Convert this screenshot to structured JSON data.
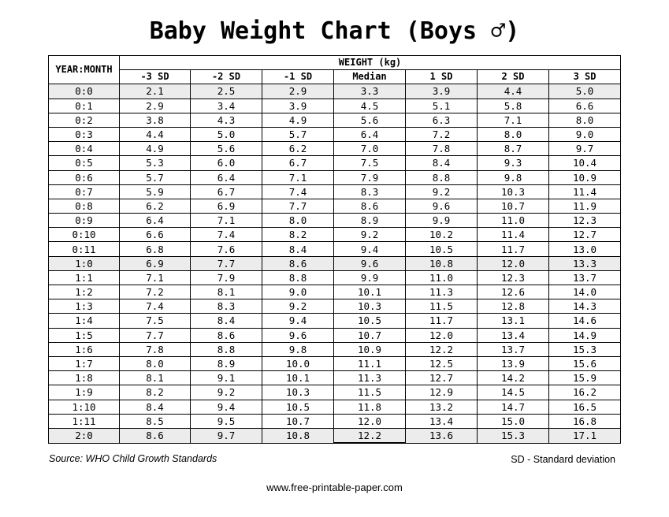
{
  "title": "Baby Weight Chart (Boys ♂)",
  "table": {
    "year_month_header": "YEAR:MONTH",
    "weight_header": "WEIGHT (kg)",
    "columns": [
      "-3 SD",
      "-2 SD",
      "-1 SD",
      "Median",
      "1 SD",
      "2 SD",
      "3 SD"
    ],
    "rows": [
      {
        "age": "0:0",
        "values": [
          "2.1",
          "2.5",
          "2.9",
          "3.3",
          "3.9",
          "4.4",
          "5.0"
        ]
      },
      {
        "age": "0:1",
        "values": [
          "2.9",
          "3.4",
          "3.9",
          "4.5",
          "5.1",
          "5.8",
          "6.6"
        ]
      },
      {
        "age": "0:2",
        "values": [
          "3.8",
          "4.3",
          "4.9",
          "5.6",
          "6.3",
          "7.1",
          "8.0"
        ]
      },
      {
        "age": "0:3",
        "values": [
          "4.4",
          "5.0",
          "5.7",
          "6.4",
          "7.2",
          "8.0",
          "9.0"
        ]
      },
      {
        "age": "0:4",
        "values": [
          "4.9",
          "5.6",
          "6.2",
          "7.0",
          "7.8",
          "8.7",
          "9.7"
        ]
      },
      {
        "age": "0:5",
        "values": [
          "5.3",
          "6.0",
          "6.7",
          "7.5",
          "8.4",
          "9.3",
          "10.4"
        ]
      },
      {
        "age": "0:6",
        "values": [
          "5.7",
          "6.4",
          "7.1",
          "7.9",
          "8.8",
          "9.8",
          "10.9"
        ]
      },
      {
        "age": "0:7",
        "values": [
          "5.9",
          "6.7",
          "7.4",
          "8.3",
          "9.2",
          "10.3",
          "11.4"
        ]
      },
      {
        "age": "0:8",
        "values": [
          "6.2",
          "6.9",
          "7.7",
          "8.6",
          "9.6",
          "10.7",
          "11.9"
        ]
      },
      {
        "age": "0:9",
        "values": [
          "6.4",
          "7.1",
          "8.0",
          "8.9",
          "9.9",
          "11.0",
          "12.3"
        ]
      },
      {
        "age": "0:10",
        "values": [
          "6.6",
          "7.4",
          "8.2",
          "9.2",
          "10.2",
          "11.4",
          "12.7"
        ]
      },
      {
        "age": "0:11",
        "values": [
          "6.8",
          "7.6",
          "8.4",
          "9.4",
          "10.5",
          "11.7",
          "13.0"
        ]
      },
      {
        "age": "1:0",
        "values": [
          "6.9",
          "7.7",
          "8.6",
          "9.6",
          "10.8",
          "12.0",
          "13.3"
        ]
      },
      {
        "age": "1:1",
        "values": [
          "7.1",
          "7.9",
          "8.8",
          "9.9",
          "11.0",
          "12.3",
          "13.7"
        ]
      },
      {
        "age": "1:2",
        "values": [
          "7.2",
          "8.1",
          "9.0",
          "10.1",
          "11.3",
          "12.6",
          "14.0"
        ]
      },
      {
        "age": "1:3",
        "values": [
          "7.4",
          "8.3",
          "9.2",
          "10.3",
          "11.5",
          "12.8",
          "14.3"
        ]
      },
      {
        "age": "1:4",
        "values": [
          "7.5",
          "8.4",
          "9.4",
          "10.5",
          "11.7",
          "13.1",
          "14.6"
        ]
      },
      {
        "age": "1:5",
        "values": [
          "7.7",
          "8.6",
          "9.6",
          "10.7",
          "12.0",
          "13.4",
          "14.9"
        ]
      },
      {
        "age": "1:6",
        "values": [
          "7.8",
          "8.8",
          "9.8",
          "10.9",
          "12.2",
          "13.7",
          "15.3"
        ]
      },
      {
        "age": "1:7",
        "values": [
          "8.0",
          "8.9",
          "10.0",
          "11.1",
          "12.5",
          "13.9",
          "15.6"
        ]
      },
      {
        "age": "1:8",
        "values": [
          "8.1",
          "9.1",
          "10.1",
          "11.3",
          "12.7",
          "14.2",
          "15.9"
        ]
      },
      {
        "age": "1:9",
        "values": [
          "8.2",
          "9.2",
          "10.3",
          "11.5",
          "12.9",
          "14.5",
          "16.2"
        ]
      },
      {
        "age": "1:10",
        "values": [
          "8.4",
          "9.4",
          "10.5",
          "11.8",
          "13.2",
          "14.7",
          "16.5"
        ]
      },
      {
        "age": "1:11",
        "values": [
          "8.5",
          "9.5",
          "10.7",
          "12.0",
          "13.4",
          "15.0",
          "16.8"
        ]
      },
      {
        "age": "2:0",
        "values": [
          "8.6",
          "9.7",
          "10.8",
          "12.2",
          "13.6",
          "15.3",
          "17.1"
        ]
      }
    ],
    "shaded_row_color": "#ececec"
  },
  "footer": {
    "source": "Source: WHO Child Growth Standards",
    "sd_note": "SD - Standard deviation",
    "website": "www.free-printable-paper.com"
  }
}
